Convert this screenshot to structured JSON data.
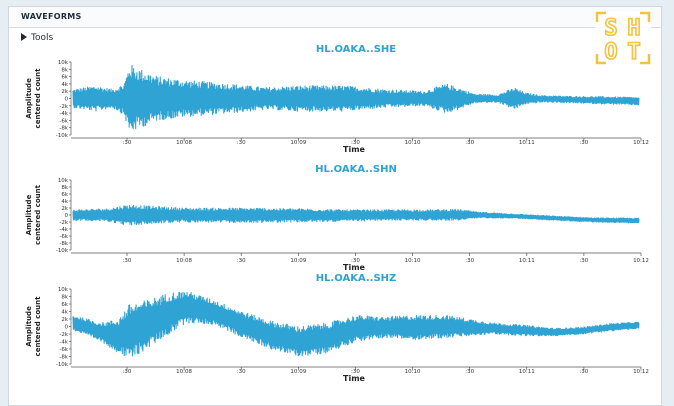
{
  "panel": {
    "title": "WAVEFORMS",
    "tools_label": "Tools"
  },
  "logo": {
    "letters": [
      "S",
      "H",
      "O",
      "T"
    ],
    "color": "#f4c23c"
  },
  "trace_color": "#2fa3d3",
  "chart_data": [
    {
      "type": "line",
      "title": "HL.OAKA..SHE",
      "xlabel": "Time",
      "ylabel": [
        "Amplitude",
        "centered count"
      ],
      "ylim": [
        -10000,
        10000
      ],
      "yticks": [
        "10k",
        "8k",
        "6k",
        "4k",
        "2k",
        "0",
        "-2k",
        "-4k",
        "-6k",
        "-8k",
        "-10k"
      ],
      "xticks": [
        ":30",
        "10:08",
        ":30",
        "10:09",
        ":30",
        "10:10",
        ":30",
        "10:11",
        ":30",
        "10:12"
      ],
      "envelope": {
        "t": [
          0,
          0.04,
          0.07,
          0.09,
          0.1,
          0.12,
          0.15,
          0.2,
          0.28,
          0.34,
          0.4,
          0.48,
          0.55,
          0.62,
          0.66,
          0.68,
          0.71,
          0.75,
          0.78,
          0.8,
          0.83,
          0.88,
          0.94,
          1.0
        ],
        "upper": [
          2500,
          3500,
          2500,
          4000,
          9500,
          8000,
          6000,
          5000,
          4000,
          3000,
          3500,
          3500,
          2500,
          2000,
          4000,
          3000,
          1200,
          1000,
          3000,
          1500,
          800,
          600,
          500,
          300
        ],
        "lower": [
          -2500,
          -3500,
          -2500,
          -4500,
          -9500,
          -8000,
          -6000,
          -5000,
          -4000,
          -3000,
          -3500,
          -3500,
          -2500,
          -2000,
          -4000,
          -3000,
          -1200,
          -1000,
          -3000,
          -1500,
          -1000,
          -1200,
          -1500,
          -1800
        ]
      }
    },
    {
      "type": "line",
      "title": "HL.OAKA..SHN",
      "xlabel": "Time",
      "ylabel": [
        "Amplitude",
        "centered count"
      ],
      "ylim": [
        -10000,
        10000
      ],
      "yticks": [
        "10k",
        "8k",
        "6k",
        "4k",
        "2k",
        "0",
        "-2k",
        "-4k",
        "-6k",
        "-8k",
        "-10k"
      ],
      "xticks": [
        ":30",
        "10:08",
        ":30",
        "10:09",
        ":30",
        "10:10",
        ":30",
        "10:11",
        ":30",
        "10:12"
      ],
      "envelope": {
        "t": [
          0,
          0.06,
          0.1,
          0.14,
          0.2,
          0.3,
          0.4,
          0.48,
          0.55,
          0.62,
          0.68,
          0.72,
          0.78,
          0.85,
          0.92,
          1.0
        ],
        "upper": [
          1500,
          1800,
          3000,
          2500,
          2000,
          2000,
          1800,
          1500,
          1500,
          1500,
          1600,
          800,
          300,
          -300,
          -800,
          -900
        ],
        "lower": [
          -1500,
          -1800,
          -3000,
          -2500,
          -2000,
          -2200,
          -2000,
          -1800,
          -1500,
          -1500,
          -1500,
          -800,
          -900,
          -1500,
          -2000,
          -2300
        ]
      }
    },
    {
      "type": "line",
      "title": "HL.OAKA..SHZ",
      "xlabel": "Time",
      "ylabel": [
        "Amplitude",
        "centered count"
      ],
      "ylim": [
        -10000,
        10000
      ],
      "yticks": [
        "10k",
        "8k",
        "6k",
        "4k",
        "2k",
        "0",
        "-2k",
        "-4k",
        "-6k",
        "-8k",
        "-10k"
      ],
      "xticks": [
        ":30",
        "10:08",
        ":30",
        "10:09",
        ":30",
        "10:10",
        ":30",
        "10:11",
        ":30",
        "10:12"
      ],
      "envelope": {
        "t": [
          0,
          0.05,
          0.08,
          0.1,
          0.13,
          0.17,
          0.2,
          0.25,
          0.3,
          0.35,
          0.4,
          0.45,
          0.5,
          0.55,
          0.6,
          0.66,
          0.7,
          0.74,
          0.8,
          0.85,
          0.9,
          0.95,
          1.0
        ],
        "upper": [
          3000,
          1000,
          2000,
          6000,
          7000,
          9000,
          9500,
          7000,
          4000,
          1500,
          0,
          1000,
          3000,
          2500,
          3000,
          3000,
          2000,
          1000,
          300,
          -500,
          -200,
          800,
          1200
        ],
        "lower": [
          -1000,
          -4000,
          -7000,
          -9000,
          -6000,
          -2000,
          1000,
          500,
          -3000,
          -6000,
          -8000,
          -7000,
          -4000,
          -3000,
          -3500,
          -3000,
          -2500,
          -2000,
          -2500,
          -2500,
          -2000,
          -1200,
          -500
        ]
      }
    }
  ]
}
